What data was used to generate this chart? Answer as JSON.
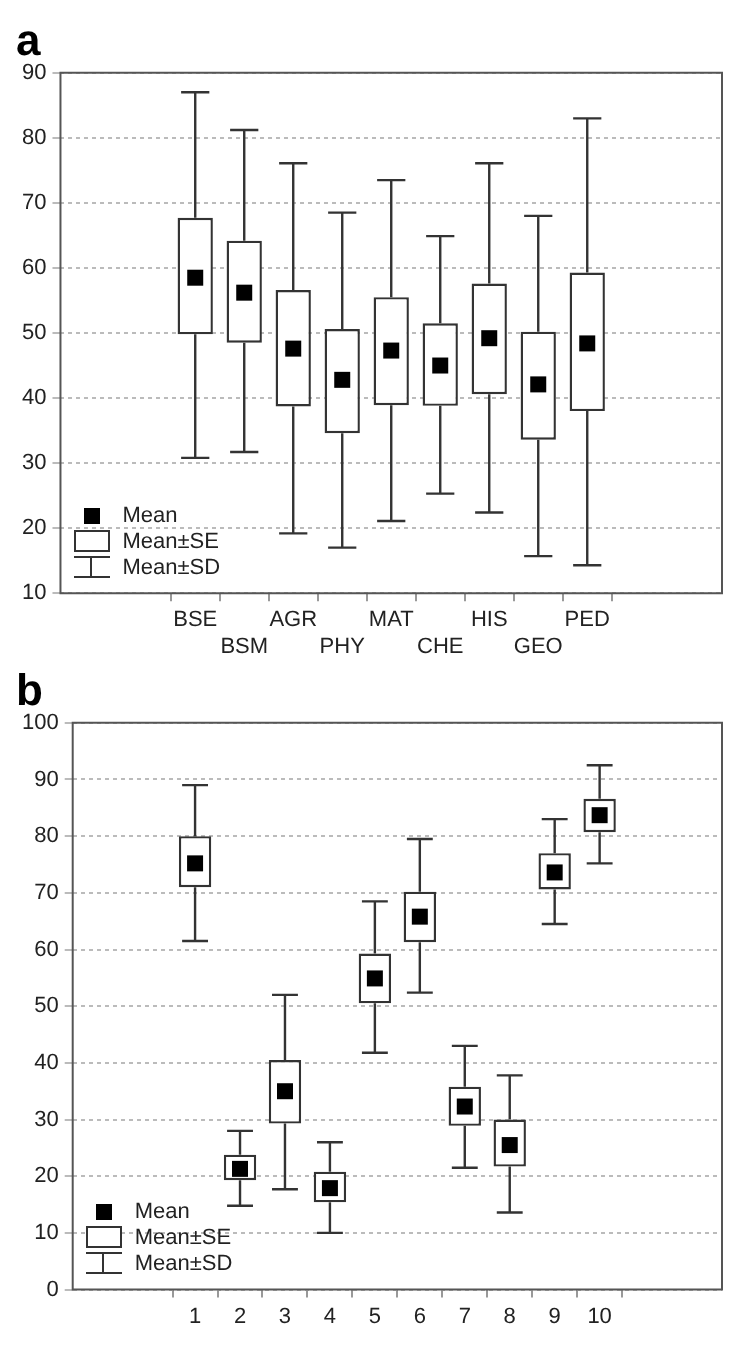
{
  "chart_data": [
    {
      "type": "box",
      "title": "a",
      "categories": [
        "BSE",
        "BSM",
        "AGR",
        "PHY",
        "MAT",
        "CHE",
        "HIS",
        "GEO",
        "PED"
      ],
      "boxes": [
        {
          "low": 30.8,
          "q1": 49.8,
          "median": 58.5,
          "q3": 67.7,
          "high": 87
        },
        {
          "low": 31.7,
          "q1": 48.5,
          "median": 56.2,
          "q3": 64.2,
          "high": 81.2
        },
        {
          "low": 19.2,
          "q1": 38.7,
          "median": 47.6,
          "q3": 56.6,
          "high": 76.1
        },
        {
          "low": 17.0,
          "q1": 34.6,
          "median": 42.8,
          "q3": 50.6,
          "high": 68.5
        },
        {
          "low": 21.1,
          "q1": 38.9,
          "median": 47.3,
          "q3": 55.5,
          "high": 73.5
        },
        {
          "low": 25.3,
          "q1": 38.8,
          "median": 45.0,
          "q3": 51.5,
          "high": 64.9
        },
        {
          "low": 22.4,
          "q1": 40.6,
          "median": 49.2,
          "q3": 57.6,
          "high": 76.1
        },
        {
          "low": 15.7,
          "q1": 33.6,
          "median": 42.1,
          "q3": 50.2,
          "high": 68.0
        },
        {
          "low": 14.3,
          "q1": 38.0,
          "median": 48.4,
          "q3": 59.3,
          "high": 83.0
        }
      ],
      "ylim": [
        10,
        90
      ],
      "yticks": [
        10,
        20,
        30,
        40,
        50,
        60,
        70,
        80,
        90
      ],
      "grid": "y",
      "annotations": [
        "Mean",
        "Mean±SE",
        "Mean±SD"
      ]
    },
    {
      "type": "box",
      "title": "b",
      "categories": [
        "1",
        "2",
        "3",
        "4",
        "5",
        "6",
        "7",
        "8",
        "9",
        "10"
      ],
      "boxes": [
        {
          "low": 61.5,
          "q1": 71,
          "median": 75.2,
          "q3": 80,
          "high": 89
        },
        {
          "low": 14.8,
          "q1": 19.3,
          "median": 21.3,
          "q3": 23.8,
          "high": 28
        },
        {
          "low": 17.7,
          "q1": 29.3,
          "median": 35,
          "q3": 40.5,
          "high": 52
        },
        {
          "low": 10.0,
          "q1": 15.4,
          "median": 17.9,
          "q3": 20.8,
          "high": 26
        },
        {
          "low": 41.8,
          "q1": 50.5,
          "median": 54.9,
          "q3": 59.3,
          "high": 68.5
        },
        {
          "low": 52.4,
          "q1": 61.3,
          "median": 65.8,
          "q3": 70.2,
          "high": 79.5
        },
        {
          "low": 21.5,
          "q1": 28.9,
          "median": 32.3,
          "q3": 35.8,
          "high": 43
        },
        {
          "low": 13.6,
          "q1": 21.7,
          "median": 25.5,
          "q3": 30,
          "high": 37.8
        },
        {
          "low": 64.5,
          "q1": 70.6,
          "median": 73.6,
          "q3": 77,
          "high": 83
        },
        {
          "low": 75.2,
          "q1": 80.7,
          "median": 83.7,
          "q3": 86.6,
          "high": 92.5
        }
      ],
      "ylim": [
        0,
        100
      ],
      "yticks": [
        0,
        10,
        20,
        30,
        40,
        50,
        60,
        70,
        80,
        90,
        100
      ],
      "grid": "y",
      "annotations": [
        "Mean",
        "Mean±SE",
        "Mean±SD"
      ]
    }
  ]
}
